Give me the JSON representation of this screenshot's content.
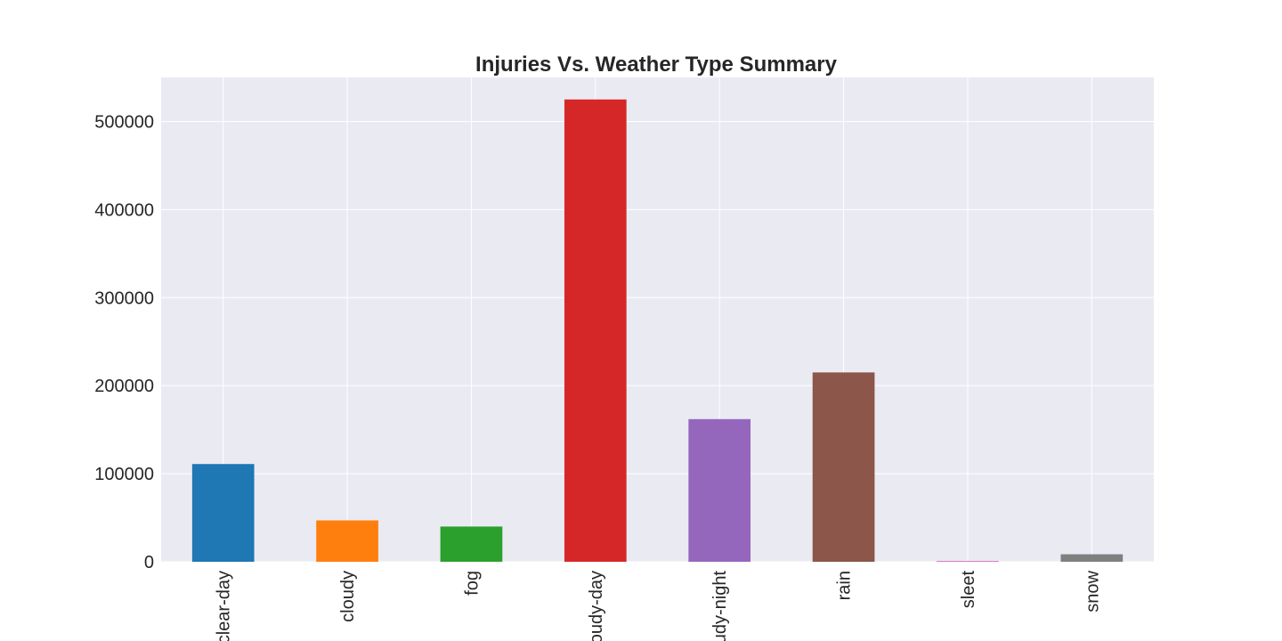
{
  "chart_data": {
    "type": "bar",
    "title": "Injuries Vs. Weather Type Summary",
    "xlabel": "",
    "ylabel": "",
    "categories": [
      "clear-day",
      "cloudy",
      "fog",
      "partly-cloudy-day",
      "partly-cloudy-night",
      "rain",
      "sleet",
      "snow"
    ],
    "visible_tick_labels": [
      "clear-day",
      "cloudy",
      "fog",
      "oudy-day",
      "udy-night",
      "rain",
      "sleet",
      "snow"
    ],
    "values": [
      111000,
      47000,
      40000,
      525000,
      162000,
      215000,
      1000,
      8500
    ],
    "colors": [
      "#1f77b4",
      "#ff7f0e",
      "#2ca02c",
      "#d62728",
      "#9467bd",
      "#8c564b",
      "#e377c2",
      "#7f7f7f"
    ],
    "ylim": [
      0,
      550000
    ],
    "yticks": [
      0,
      100000,
      200000,
      300000,
      400000,
      500000
    ],
    "ytick_labels": [
      "0",
      "100000",
      "200000",
      "300000",
      "400000",
      "500000"
    ],
    "grid": true,
    "legend": "none",
    "style": {
      "plot_background": "#eaeaf2",
      "grid_color": "#ffffff",
      "text_color": "#262626"
    }
  }
}
